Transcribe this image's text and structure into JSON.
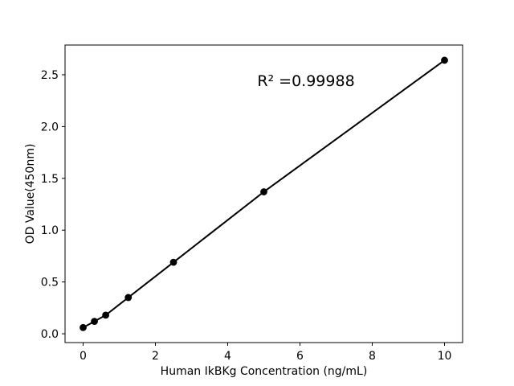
{
  "chart_data": {
    "type": "scatter",
    "title": "",
    "xlabel": "Human IkBKg Concentration (ng/mL)",
    "ylabel": "OD Value(450nm)",
    "annotation": "R² =0.99988",
    "x": [
      0,
      0.3125,
      0.625,
      1.25,
      2.5,
      5,
      10
    ],
    "y": [
      0.06,
      0.12,
      0.18,
      0.35,
      0.69,
      1.37,
      2.64
    ],
    "x_ticks": [
      "0",
      "2",
      "4",
      "6",
      "8",
      "10"
    ],
    "x_tick_values": [
      0,
      2,
      4,
      6,
      8,
      10
    ],
    "y_ticks": [
      "0.0",
      "0.5",
      "1.0",
      "1.5",
      "2.0",
      "2.5"
    ],
    "y_tick_values": [
      0,
      0.5,
      1.0,
      1.5,
      2.0,
      2.5
    ],
    "xlim": [
      -0.5,
      10.5
    ],
    "ylim": [
      -0.085,
      2.787
    ],
    "grid": false,
    "legend_position": "none",
    "line_color": "#000000",
    "marker_color": "#000000",
    "axis_color": "#000000",
    "background_color": "#ffffff"
  }
}
